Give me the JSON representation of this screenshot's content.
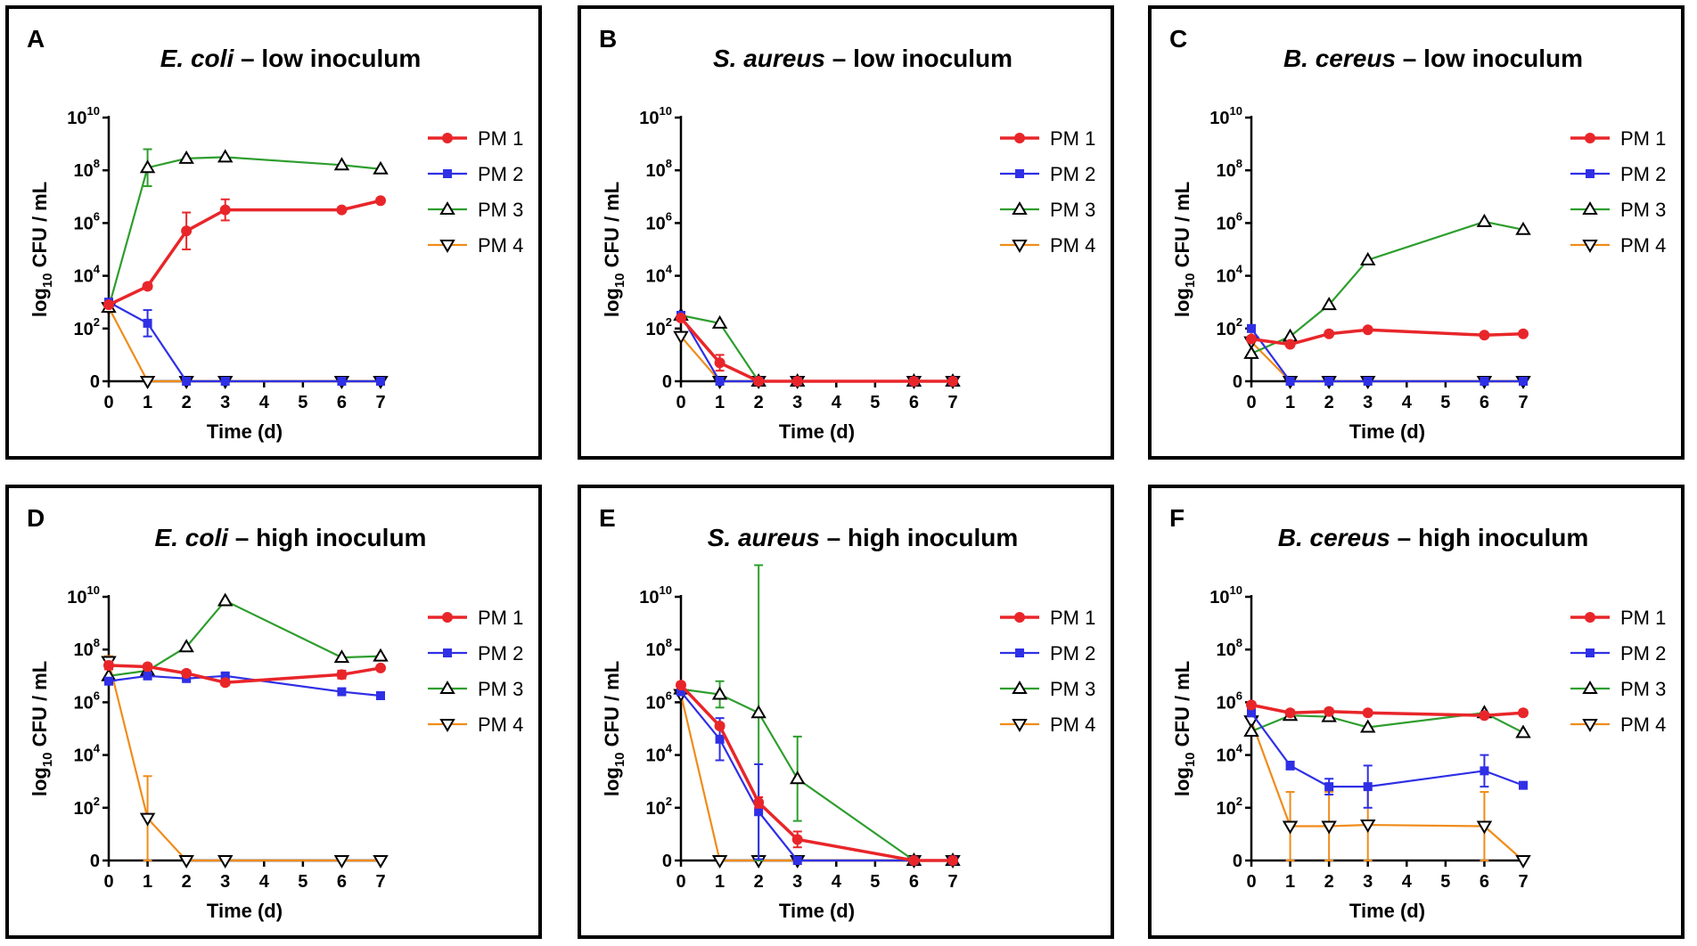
{
  "chart_data": [
    {
      "panel": "A",
      "title": {
        "species": "E. coli",
        "rest": " – low inoculum"
      },
      "type": "line",
      "xlabel": "Time (d)",
      "ylabel": "log10 CFU / mL",
      "x": [
        0,
        1,
        2,
        3,
        6,
        7
      ],
      "xticks": [
        0,
        1,
        2,
        3,
        4,
        5,
        6,
        7
      ],
      "yticks_exp": [
        0,
        2,
        4,
        6,
        8,
        10
      ],
      "series": [
        {
          "name": "PM 1",
          "values": [
            2.9,
            3.6,
            5.7,
            6.5,
            6.5,
            6.85
          ],
          "err": [
            0.1,
            0.1,
            0.7,
            0.4,
            0,
            0
          ]
        },
        {
          "name": "PM 2",
          "values": [
            3.0,
            2.2,
            0,
            0,
            0,
            0
          ],
          "err": [
            0,
            0.5,
            0,
            0,
            0,
            0
          ]
        },
        {
          "name": "PM 3",
          "values": [
            2.8,
            8.1,
            8.45,
            8.5,
            8.2,
            8.05
          ],
          "err": [
            0,
            0.7,
            0,
            0,
            0,
            0
          ]
        },
        {
          "name": "PM 4",
          "values": [
            2.8,
            0,
            0,
            0,
            0,
            0
          ],
          "err": [
            0,
            0,
            0,
            0,
            0,
            0
          ]
        }
      ]
    },
    {
      "panel": "B",
      "title": {
        "species": "S. aureus",
        "rest": " – low inoculum"
      },
      "type": "line",
      "xlabel": "Time (d)",
      "ylabel": "log10 CFU / mL",
      "x": [
        0,
        1,
        2,
        3,
        6,
        7
      ],
      "xticks": [
        0,
        1,
        2,
        3,
        4,
        5,
        6,
        7
      ],
      "yticks_exp": [
        0,
        2,
        4,
        6,
        8,
        10
      ],
      "series": [
        {
          "name": "PM 1",
          "values": [
            2.4,
            0.7,
            0,
            0,
            0,
            0
          ],
          "err": [
            0.1,
            0.3,
            0,
            0,
            0,
            0
          ]
        },
        {
          "name": "PM 2",
          "values": [
            2.5,
            0,
            0,
            0,
            0,
            0
          ],
          "err": [
            0,
            0,
            0,
            0,
            0,
            0
          ]
        },
        {
          "name": "PM 3",
          "values": [
            2.5,
            2.2,
            0,
            0,
            0,
            0
          ],
          "err": [
            0,
            0,
            0,
            0,
            0,
            0
          ]
        },
        {
          "name": "PM 4",
          "values": [
            1.7,
            0,
            0,
            0,
            0,
            0
          ],
          "err": [
            0,
            0,
            0,
            0,
            0,
            0
          ]
        }
      ]
    },
    {
      "panel": "C",
      "title": {
        "species": "B. cereus",
        "rest": " – low inoculum"
      },
      "type": "line",
      "xlabel": "Time (d)",
      "ylabel": "log10 CFU / mL",
      "x": [
        0,
        1,
        2,
        3,
        6,
        7
      ],
      "xticks": [
        0,
        1,
        2,
        3,
        4,
        5,
        6,
        7
      ],
      "yticks_exp": [
        0,
        2,
        4,
        6,
        8,
        10
      ],
      "series": [
        {
          "name": "PM 1",
          "values": [
            1.6,
            1.4,
            1.8,
            1.95,
            1.75,
            1.8
          ],
          "err": [
            0,
            0,
            0,
            0,
            0,
            0
          ]
        },
        {
          "name": "PM 2",
          "values": [
            2.0,
            0,
            0,
            0,
            0,
            0
          ],
          "err": [
            0,
            0,
            0,
            0,
            0,
            0
          ]
        },
        {
          "name": "PM 3",
          "values": [
            1.05,
            1.7,
            2.9,
            4.6,
            6.05,
            5.75
          ],
          "err": [
            0,
            0,
            0,
            0,
            0,
            0
          ]
        },
        {
          "name": "PM 4",
          "values": [
            1.5,
            0,
            0,
            0,
            0,
            0
          ],
          "err": [
            0.6,
            0,
            0,
            0,
            0,
            0
          ]
        }
      ]
    },
    {
      "panel": "D",
      "title": {
        "species": "E. coli",
        "rest": " – high inoculum"
      },
      "type": "line",
      "xlabel": "Time (d)",
      "ylabel": "log10 CFU / mL",
      "x": [
        0,
        1,
        2,
        3,
        6,
        7
      ],
      "xticks": [
        0,
        1,
        2,
        3,
        4,
        5,
        6,
        7
      ],
      "yticks_exp": [
        0,
        2,
        4,
        6,
        8,
        10
      ],
      "series": [
        {
          "name": "PM 1",
          "values": [
            7.4,
            7.35,
            7.1,
            6.75,
            7.05,
            7.3
          ],
          "err": [
            0.15,
            0.1,
            0.1,
            0.1,
            0.15,
            0.05
          ]
        },
        {
          "name": "PM 2",
          "values": [
            6.8,
            7.0,
            6.9,
            7.0,
            6.4,
            6.25
          ],
          "err": [
            0.1,
            0.1,
            0.1,
            0.1,
            0,
            0
          ]
        },
        {
          "name": "PM 3",
          "values": [
            7.0,
            7.2,
            8.1,
            9.85,
            7.7,
            7.75
          ],
          "err": [
            0,
            0,
            0,
            0,
            0,
            0
          ]
        },
        {
          "name": "PM 4",
          "values": [
            7.55,
            1.6,
            0,
            0,
            0,
            0
          ],
          "err": [
            0.2,
            1.6,
            0,
            0,
            0,
            0
          ]
        }
      ]
    },
    {
      "panel": "E",
      "title": {
        "species": "S. aureus",
        "rest": " – high inoculum"
      },
      "type": "line",
      "xlabel": "Time (d)",
      "ylabel": "log10 CFU / mL",
      "x": [
        0,
        1,
        2,
        3,
        6,
        7
      ],
      "xticks": [
        0,
        1,
        2,
        3,
        4,
        5,
        6,
        7
      ],
      "yticks_exp": [
        0,
        2,
        4,
        6,
        8,
        10
      ],
      "series": [
        {
          "name": "PM 1",
          "values": [
            6.65,
            5.1,
            2.2,
            0.8,
            0,
            0
          ],
          "err": [
            0.1,
            0.1,
            0.2,
            0.3,
            0,
            0
          ]
        },
        {
          "name": "PM 2",
          "values": [
            6.4,
            4.6,
            1.85,
            0,
            0,
            0
          ],
          "err": [
            0.1,
            0.8,
            1.8,
            0,
            0,
            0
          ]
        },
        {
          "name": "PM 3",
          "values": [
            6.5,
            6.3,
            5.6,
            3.1,
            0,
            0
          ],
          "err": [
            0,
            0.5,
            5.6,
            1.6,
            0,
            0
          ]
        },
        {
          "name": "PM 4",
          "values": [
            6.3,
            0,
            0,
            0,
            0,
            0
          ],
          "err": [
            0,
            0,
            0,
            0,
            0,
            0
          ]
        }
      ]
    },
    {
      "panel": "F",
      "title": {
        "species": "B. cereus",
        "rest": " – high inoculum"
      },
      "type": "line",
      "xlabel": "Time (d)",
      "ylabel": "log10 CFU / mL",
      "x": [
        0,
        1,
        2,
        3,
        6,
        7
      ],
      "xticks": [
        0,
        1,
        2,
        3,
        4,
        5,
        6,
        7
      ],
      "yticks_exp": [
        0,
        2,
        4,
        6,
        8,
        10
      ],
      "series": [
        {
          "name": "PM 1",
          "values": [
            5.9,
            5.6,
            5.65,
            5.6,
            5.5,
            5.6
          ],
          "err": [
            0.1,
            0.1,
            0.1,
            0.1,
            0.1,
            0.1
          ]
        },
        {
          "name": "PM 2",
          "values": [
            5.6,
            3.6,
            2.8,
            2.8,
            3.4,
            2.85
          ],
          "err": [
            0,
            0.15,
            0.3,
            0.8,
            0.6,
            0
          ]
        },
        {
          "name": "PM 3",
          "values": [
            4.9,
            5.5,
            5.45,
            5.05,
            5.6,
            4.85
          ],
          "err": [
            0,
            0,
            0,
            0,
            0,
            0
          ]
        },
        {
          "name": "PM 4",
          "values": [
            5.3,
            1.3,
            1.3,
            1.35,
            1.3,
            0
          ],
          "err": [
            0,
            1.3,
            1.3,
            1.35,
            1.3,
            0
          ]
        }
      ]
    }
  ],
  "series_colors": {
    "PM 1": "#e8262a",
    "PM 2": "#2f2fe6",
    "PM 3": "#2e9e2e",
    "PM 4": "#f08c1a"
  },
  "marker_icons": {
    "PM 1": "filled-circle",
    "PM 2": "filled-square",
    "PM 3": "open-triangle-up",
    "PM 4": "open-triangle-down"
  },
  "ytick_base": "10",
  "ytick_zero": "0"
}
